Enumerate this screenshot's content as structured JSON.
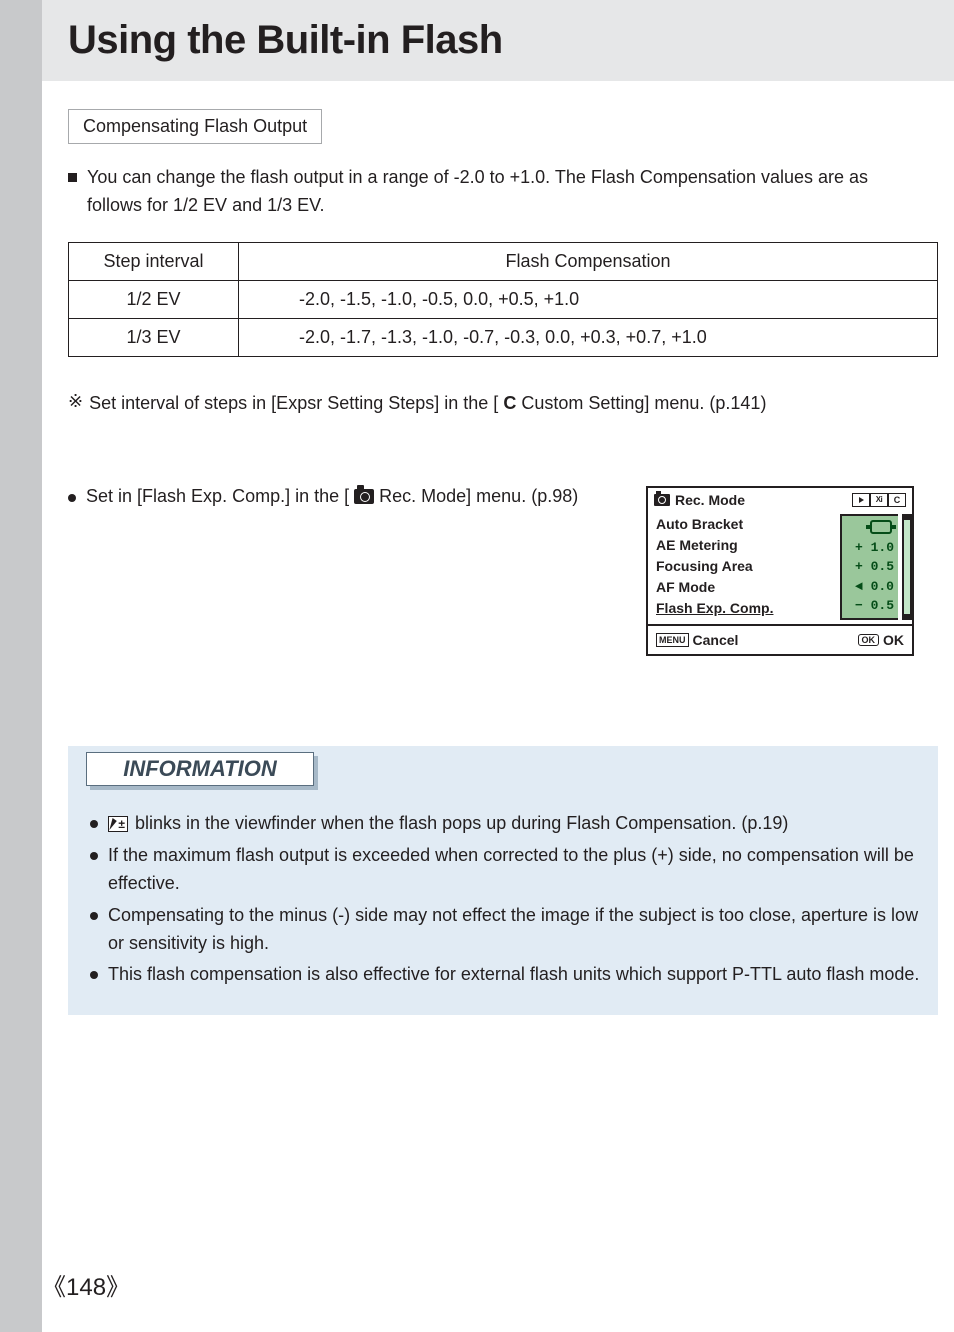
{
  "page": {
    "number": "148",
    "left_angle": "《",
    "right_angle": "》"
  },
  "title": "Using the Built-in Flash",
  "subheading": "Compensating Flash Output",
  "intro": "You can change the flash output in a range of -2.0 to +1.0. The Flash Compensation values are as follows for 1/2 EV and 1/3 EV.",
  "table": {
    "headers": {
      "step": "Step interval",
      "comp": "Flash Compensation"
    },
    "rows": [
      {
        "step": "1/2 EV",
        "vals": "-2.0, -1.5, -1.0, -0.5, 0.0, +0.5, +1.0"
      },
      {
        "step": "1/3 EV",
        "vals": "-2.0, -1.7, -1.3, -1.0, -0.7, -0.3, 0.0, +0.3, +0.7, +1.0"
      }
    ]
  },
  "note": {
    "marker": "※",
    "before_icon": "Set interval of steps in [Expsr Setting Steps] in the [ ",
    "c_letter": "C",
    "after_icon": " Custom Setting] menu. (p.141)"
  },
  "set_line": {
    "before": "Set in [Flash Exp. Comp.] in the [ ",
    "after": " Rec. Mode] menu. (p.98)"
  },
  "lcd": {
    "title": "Rec. Mode",
    "tabs": {
      "xi": "Xi",
      "c": "C"
    },
    "items": {
      "auto_bracket": "Auto Bracket",
      "ae_metering": "AE Metering",
      "focusing_area": "Focusing Area",
      "af_mode": "AF Mode",
      "flash_exp": "Flash Exp. Comp."
    },
    "values": {
      "plus10": "+ 1.0",
      "plus05": "+ 0.5",
      "zero": "   0.0",
      "minus05": "− 0.5"
    },
    "bottom": {
      "menu": "MENU",
      "cancel": "Cancel",
      "ok_tag": "OK",
      "ok": "OK"
    }
  },
  "info": {
    "heading": "INFORMATION",
    "items": [
      {
        "has_icon": true,
        "text": " blinks in the viewfinder when the flash pops up during Flash Compensation. (p.19)"
      },
      {
        "has_icon": false,
        "text": "If the maximum flash output is exceeded when corrected to the plus (+) side, no compensation will be effective."
      },
      {
        "has_icon": false,
        "text": "Compensating to the minus (-) side may not effect the image if the subject is too close, aperture is low or sensitivity is high."
      },
      {
        "has_icon": false,
        "text": "This flash compensation is also effective for external flash units which support P-TTL auto flash mode."
      }
    ]
  },
  "colors": {
    "left_stripe": "#c8c9cb",
    "title_bg": "#e6e7e8",
    "info_bg": "#e1ebf4",
    "info_shadow": "#a7b9c8",
    "info_border": "#5a6e7f",
    "lcd_green_bg": "#9ac79b",
    "lcd_green_text": "#054d18",
    "text": "#231f20"
  }
}
